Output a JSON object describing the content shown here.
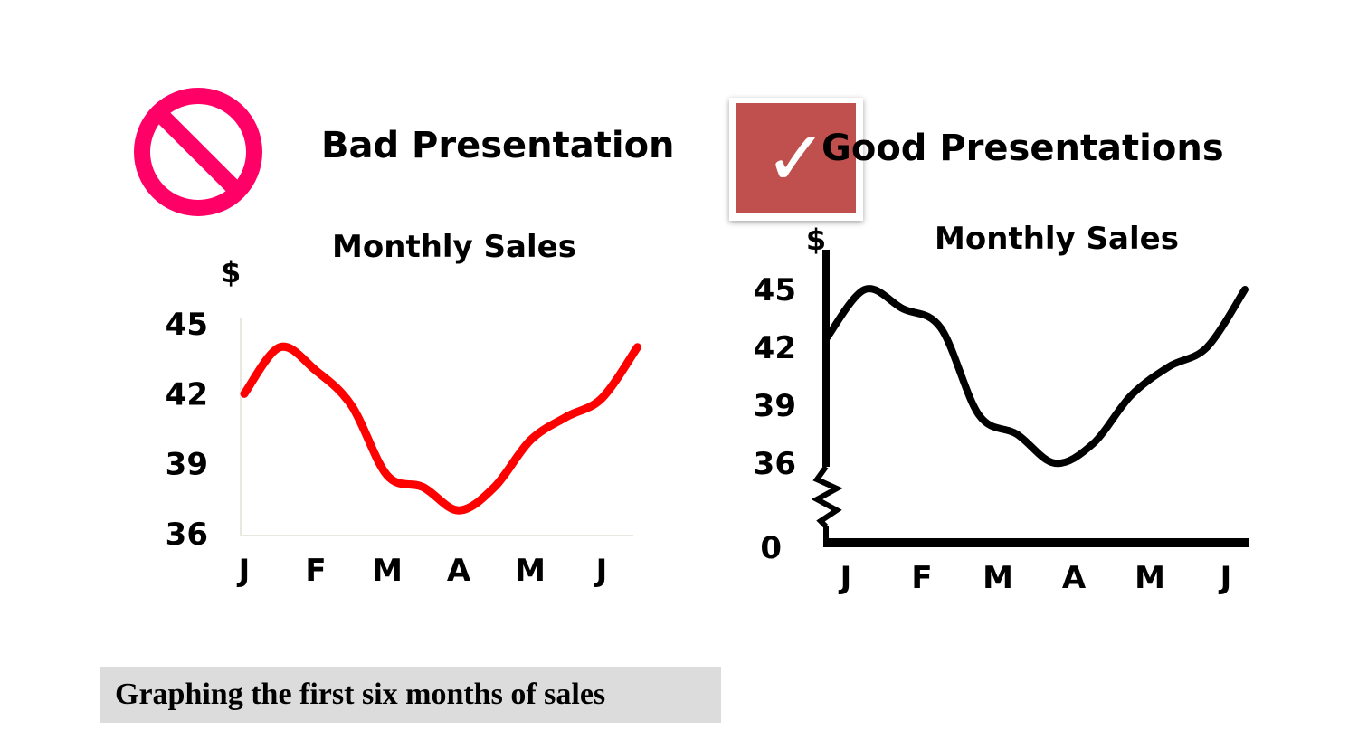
{
  "bad_panel": {
    "heading": "Bad Presentation",
    "icon": "prohibited-icon",
    "icon_color": "#ff0066"
  },
  "good_panel": {
    "heading": "Good Presentations",
    "icon": "checkmark-icon",
    "icon_glyph": "✓",
    "icon_color": "#c0504d"
  },
  "caption": "Graphing the first six months of sales",
  "chart_data": [
    {
      "type": "line",
      "title": "Monthly Sales",
      "ylabel": "$",
      "categories": [
        "J",
        "F",
        "M",
        "A",
        "M",
        "J"
      ],
      "ylim": [
        36,
        45
      ],
      "y_ticks": [
        "45",
        "42",
        "39",
        "36"
      ],
      "series_color": "#ff0000",
      "x": [
        0,
        0.5,
        1,
        1.5,
        2,
        2.5,
        3,
        3.5,
        4,
        4.5,
        5,
        5.5
      ],
      "values": [
        42,
        44,
        43,
        41.5,
        38.5,
        38,
        37,
        38,
        40,
        41,
        41.8,
        44
      ]
    },
    {
      "type": "line",
      "title": "Monthly Sales",
      "ylabel": "$",
      "categories": [
        "J",
        "F",
        "M",
        "A",
        "M",
        "J"
      ],
      "ylim": [
        36,
        45
      ],
      "y_ticks": [
        "45",
        "42",
        "39",
        "36"
      ],
      "y_zero_label": "0",
      "axis_break": true,
      "series_color": "#000000",
      "x": [
        0,
        0.5,
        1,
        1.5,
        2,
        2.5,
        3,
        3.5,
        4,
        4.5,
        5,
        5.5
      ],
      "values": [
        42.5,
        45,
        44,
        43,
        38.5,
        37.5,
        36,
        37,
        39.5,
        41,
        42,
        45
      ]
    }
  ]
}
